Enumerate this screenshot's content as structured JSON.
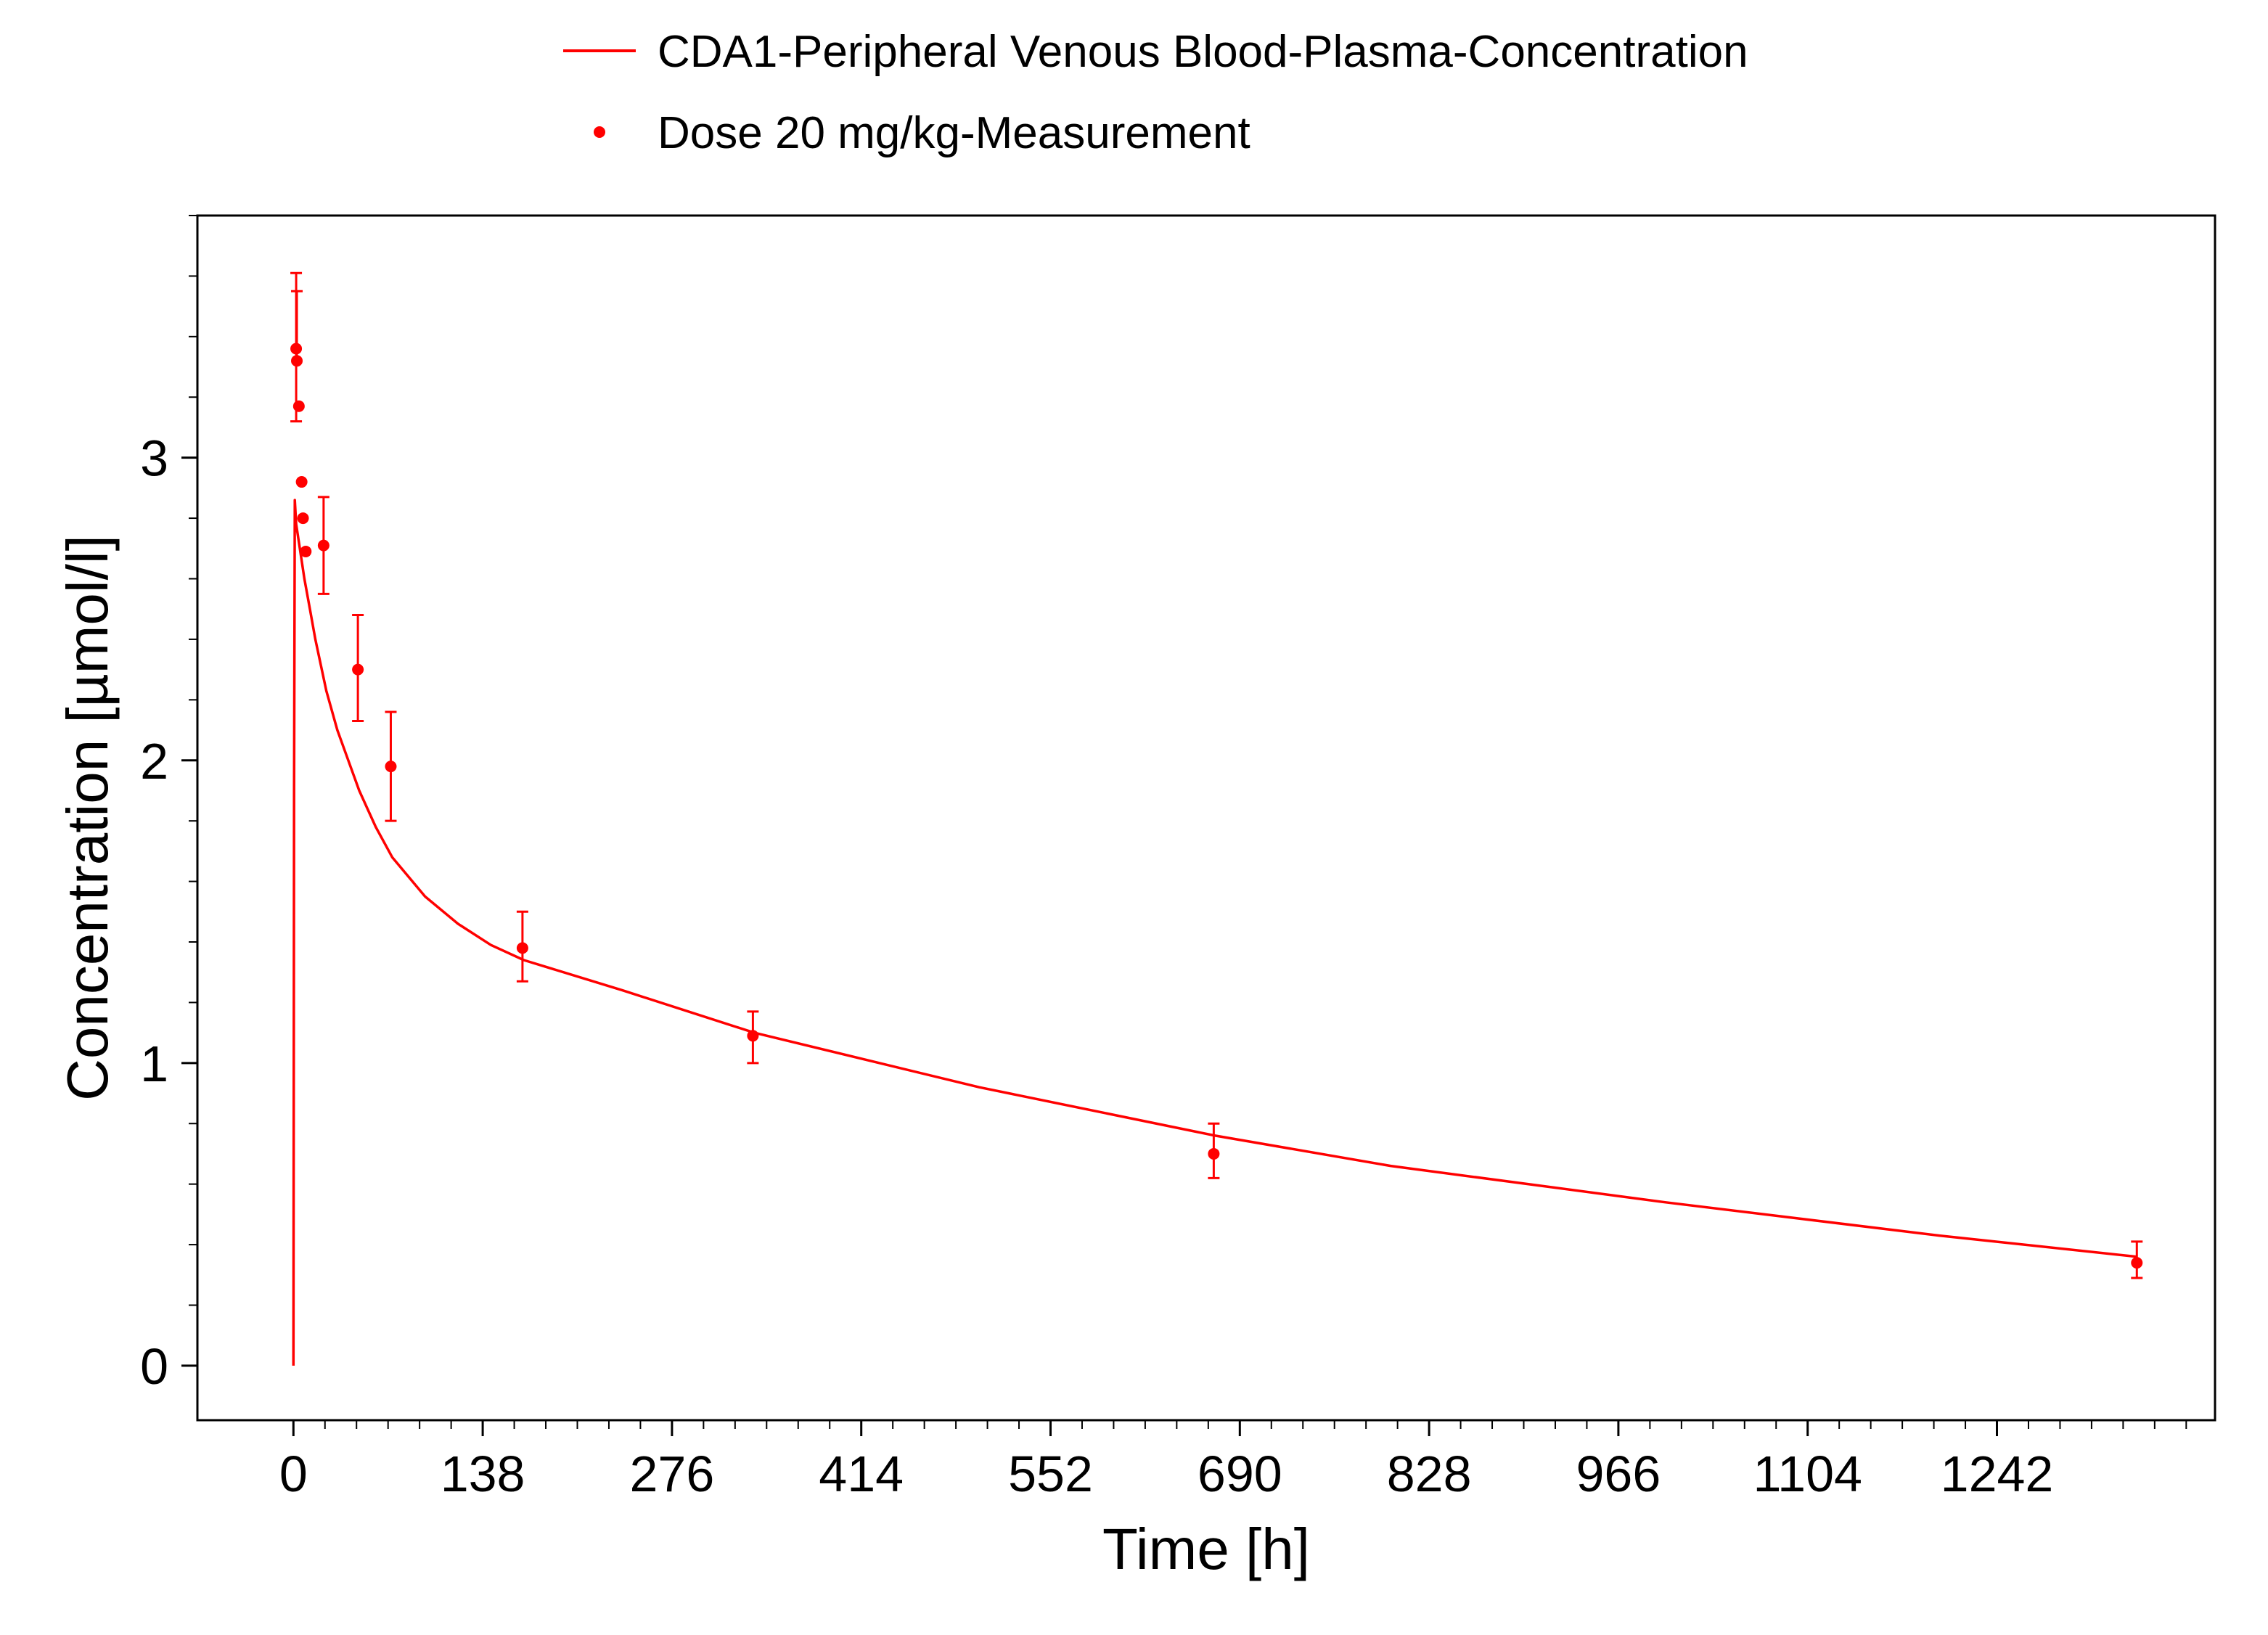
{
  "chart_data": {
    "type": "line",
    "xlabel": "Time [h]",
    "ylabel": "Concentration [µmol/l]",
    "xlim": [
      -70,
      1401
    ],
    "ylim": [
      -0.18,
      3.8
    ],
    "x_ticks": [
      "0",
      "138",
      "276",
      "414",
      "552",
      "690",
      "828",
      "966",
      "1104",
      "1242"
    ],
    "x_tick_values": [
      0,
      138,
      276,
      414,
      552,
      690,
      828,
      966,
      1104,
      1242
    ],
    "y_ticks": [
      "0",
      "1",
      "2",
      "3"
    ],
    "y_tick_values": [
      0,
      1,
      2,
      3
    ],
    "x_minor_step": 23,
    "y_minor_step": 0.2,
    "grid": false,
    "legend_position": "top-center",
    "color": "#ff0000",
    "series": [
      {
        "name": "CDA1-Peripheral Venous Blood-Plasma-Concentration",
        "kind": "line",
        "x": [
          0,
          0.5,
          1,
          2,
          4,
          8,
          12,
          16,
          24,
          32,
          40,
          48,
          60,
          72,
          96,
          120,
          144,
          168,
          240,
          336,
          500,
          672,
          800,
          1000,
          1200,
          1344
        ],
        "y": [
          0,
          1.9,
          2.86,
          2.78,
          2.72,
          2.6,
          2.5,
          2.4,
          2.23,
          2.1,
          2.0,
          1.9,
          1.78,
          1.68,
          1.55,
          1.46,
          1.39,
          1.34,
          1.24,
          1.1,
          0.92,
          0.76,
          0.66,
          0.54,
          0.43,
          0.36
        ]
      },
      {
        "name": "Dose 20 mg/kg-Measurement",
        "kind": "scatter",
        "x": [
          2,
          2.5,
          4,
          6,
          7,
          9,
          22,
          47,
          71,
          167,
          335,
          671,
          1344
        ],
        "y": [
          3.36,
          3.32,
          3.17,
          2.92,
          2.8,
          2.69,
          2.71,
          2.3,
          1.98,
          1.38,
          1.09,
          0.7,
          0.34
        ],
        "err_low": [
          3.12,
          null,
          null,
          null,
          null,
          null,
          2.55,
          2.13,
          1.8,
          1.27,
          1.0,
          0.62,
          0.29
        ],
        "err_high": [
          3.61,
          3.55,
          null,
          null,
          null,
          null,
          2.87,
          2.48,
          2.16,
          1.5,
          1.17,
          0.8,
          0.41
        ]
      }
    ]
  }
}
